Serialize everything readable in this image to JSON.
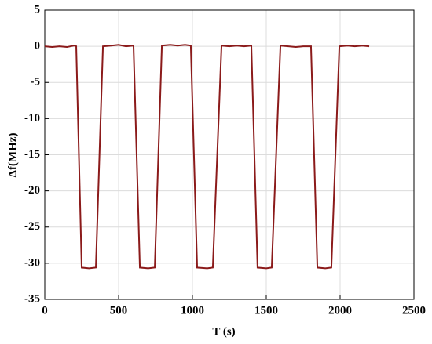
{
  "chart_data": {
    "type": "line",
    "x_label": "T (s)",
    "y_label": "Δf(MHz)",
    "x": [
      0,
      50,
      100,
      150,
      200,
      213,
      250,
      300,
      346,
      394,
      450,
      500,
      550,
      601,
      644,
      700,
      745,
      793,
      850,
      900,
      950,
      989,
      1032,
      1100,
      1138,
      1197,
      1250,
      1300,
      1350,
      1399,
      1441,
      1500,
      1537,
      1596,
      1650,
      1700,
      1750,
      1803,
      1846,
      1900,
      1941,
      1995,
      2050,
      2100,
      2150,
      2197
    ],
    "series": [
      {
        "color": "#8b1a1a",
        "values": [
          0,
          -0.1,
          0,
          -0.1,
          0.1,
          0,
          -30.6,
          -30.7,
          -30.6,
          0,
          0.1,
          0.2,
          0,
          0.1,
          -30.6,
          -30.7,
          -30.6,
          0.1,
          0.2,
          0.1,
          0.2,
          0.1,
          -30.6,
          -30.7,
          -30.6,
          0.1,
          0,
          0.1,
          0,
          0.1,
          -30.6,
          -30.7,
          -30.6,
          0.1,
          0,
          -0.1,
          0,
          0,
          -30.6,
          -30.7,
          -30.6,
          0,
          0.1,
          0,
          0.1,
          0
        ]
      }
    ],
    "xlim": [
      0,
      2500
    ],
    "xticks": [
      0,
      500,
      1000,
      1500,
      2000,
      2500
    ],
    "ylim": [
      -35,
      5
    ],
    "yticks": [
      -35,
      -30,
      -25,
      -20,
      -15,
      -10,
      -5,
      0,
      5
    ],
    "grid": true
  }
}
